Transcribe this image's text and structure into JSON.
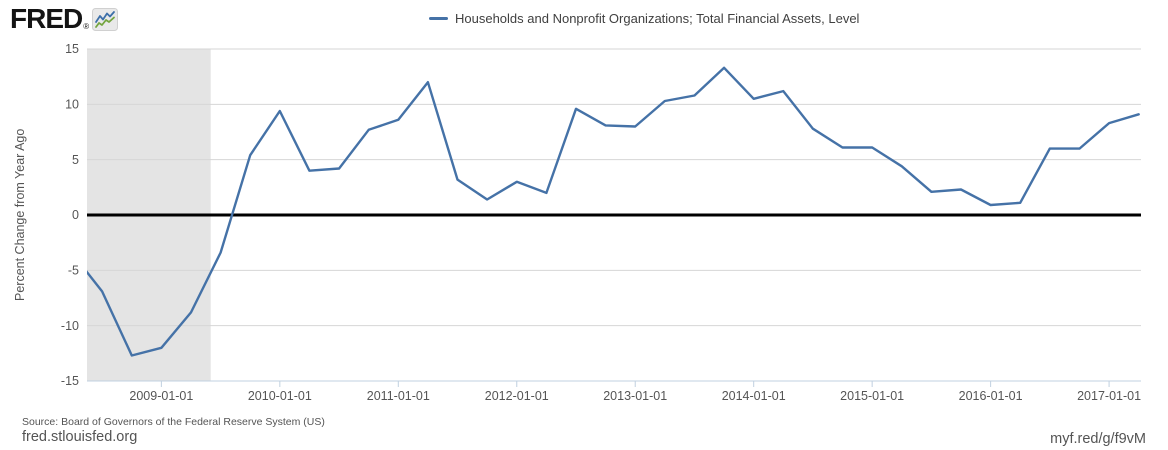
{
  "header": {
    "logo_text": "FRED",
    "registered_mark": "®",
    "logo_icon": "fred-sparkline-icon"
  },
  "legend": {
    "marker_color": "#4572a7",
    "label": "Households and Nonprofit Organizations; Total Financial Assets, Level"
  },
  "footer": {
    "source": "Source: Board of Governors of the Federal Reserve System (US)",
    "site": "fred.stlouisfed.org",
    "short_url": "myf.red/g/f9vM"
  },
  "colors": {
    "line": "#4572a7",
    "recession_band": "#e4e4e4",
    "gridline": "#d6d6d6",
    "axis": "#c0d0e0",
    "zero_line": "#000000",
    "tick_text": "#555555"
  },
  "chart_data": {
    "type": "line",
    "title": "",
    "xlabel": "",
    "ylabel": "Percent Change from Year Ago",
    "ylim": [
      -15,
      15
    ],
    "yticks": [
      15,
      10,
      5,
      0,
      -5,
      -10,
      -15
    ],
    "xtick_labels": [
      "2009-01-01",
      "2010-01-01",
      "2011-01-01",
      "2012-01-01",
      "2013-01-01",
      "2014-01-01",
      "2015-01-01",
      "2016-01-01",
      "2017-01-01"
    ],
    "x_range": [
      "2008-05-15",
      "2017-04-08"
    ],
    "grid": true,
    "zero_line": true,
    "legend_position": "top-center",
    "recession_band": {
      "start": "2008-05-15",
      "end": "2009-06-01"
    },
    "series": [
      {
        "name": "Households and Nonprofit Organizations; Total Financial Assets, Level",
        "x": [
          "2008-04-01",
          "2008-07-01",
          "2008-10-01",
          "2009-01-01",
          "2009-04-01",
          "2009-07-01",
          "2009-10-01",
          "2010-01-01",
          "2010-04-01",
          "2010-07-01",
          "2010-10-01",
          "2011-01-01",
          "2011-04-01",
          "2011-07-01",
          "2011-10-01",
          "2012-01-01",
          "2012-04-01",
          "2012-07-01",
          "2012-10-01",
          "2013-01-01",
          "2013-04-01",
          "2013-07-01",
          "2013-10-01",
          "2014-01-01",
          "2014-04-01",
          "2014-07-01",
          "2014-10-01",
          "2015-01-01",
          "2015-04-01",
          "2015-07-01",
          "2015-10-01",
          "2016-01-01",
          "2016-04-01",
          "2016-07-01",
          "2016-10-01",
          "2017-01-01",
          "2017-04-01"
        ],
        "values": [
          -3.5,
          -6.9,
          -12.7,
          -12.0,
          -8.8,
          -3.4,
          5.4,
          9.4,
          4.0,
          4.2,
          7.7,
          8.6,
          12.0,
          3.2,
          1.4,
          3.0,
          2.0,
          9.6,
          8.1,
          8.0,
          10.3,
          10.8,
          13.3,
          10.5,
          11.2,
          7.8,
          6.1,
          6.1,
          4.4,
          2.1,
          2.3,
          0.9,
          1.1,
          6.0,
          6.0,
          8.3,
          9.1
        ]
      }
    ]
  }
}
